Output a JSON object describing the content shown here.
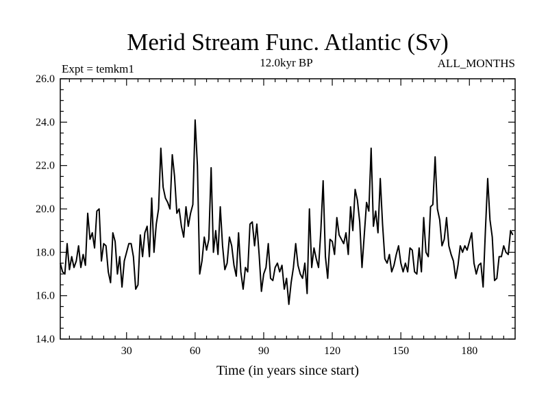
{
  "chart_data": {
    "type": "line",
    "title": "Merid Stream Func. Atlantic (Sv)",
    "subtitle_left": "Expt = temkm1",
    "subtitle_center": "12.0kyr BP",
    "subtitle_right": "ALL_MONTHS",
    "xlabel": "Time (in years since start)",
    "ylabel": "",
    "xlim": [
      1,
      200
    ],
    "ylim": [
      14.0,
      26.0
    ],
    "grid": false,
    "x_ticks": [
      30,
      60,
      90,
      120,
      150,
      180
    ],
    "x_tick_labels": [
      "30",
      "60",
      "90",
      "120",
      "150",
      "180"
    ],
    "y_ticks": [
      14,
      16,
      18,
      20,
      22,
      24,
      26
    ],
    "y_tick_labels": [
      "14.0",
      "16.0",
      "18.0",
      "20.0",
      "22.0",
      "24.0",
      "26.0"
    ],
    "series": [
      {
        "name": "Merid Stream Func. Atlantic",
        "x_start": 1,
        "x_step": 1,
        "values": [
          17.5,
          17.1,
          17.0,
          18.4,
          17.2,
          17.8,
          17.3,
          17.6,
          18.3,
          17.3,
          17.9,
          17.4,
          19.8,
          18.6,
          18.9,
          18.2,
          19.9,
          20.0,
          17.6,
          18.4,
          18.3,
          17.1,
          16.6,
          18.9,
          18.5,
          17.0,
          17.8,
          16.4,
          17.6,
          18.0,
          18.4,
          18.4,
          17.8,
          16.3,
          16.5,
          18.8,
          17.8,
          18.9,
          19.2,
          17.8,
          20.5,
          18.0,
          19.3,
          20.0,
          22.8,
          21.0,
          20.5,
          20.3,
          20.0,
          22.5,
          21.5,
          19.8,
          20.0,
          19.2,
          18.7,
          20.1,
          19.2,
          19.8,
          20.2,
          24.1,
          22.0,
          17.0,
          17.6,
          18.7,
          18.1,
          18.6,
          21.9,
          18.0,
          19.0,
          17.9,
          20.1,
          18.3,
          17.2,
          17.5,
          18.7,
          18.3,
          17.4,
          16.9,
          18.9,
          17.1,
          16.3,
          17.3,
          17.1,
          19.3,
          19.4,
          18.3,
          19.3,
          17.9,
          16.2,
          17.0,
          17.3,
          18.4,
          16.8,
          16.7,
          17.3,
          17.5,
          17.1,
          17.4,
          16.3,
          16.8,
          15.6,
          16.6,
          17.3,
          18.4,
          17.4,
          17.0,
          16.8,
          17.5,
          16.1,
          20.0,
          17.3,
          18.2,
          17.7,
          17.3,
          19.0,
          21.3,
          17.8,
          16.8,
          18.6,
          18.5,
          17.9,
          19.6,
          18.8,
          18.6,
          18.4,
          18.9,
          17.9,
          20.1,
          19.0,
          20.9,
          20.4,
          19.4,
          17.3,
          18.8,
          20.3,
          19.9,
          22.8,
          19.2,
          19.9,
          18.9,
          21.4,
          19.3,
          17.7,
          17.5,
          17.9,
          17.1,
          17.4,
          17.9,
          18.3,
          17.5,
          17.1,
          17.5,
          17.1,
          18.2,
          18.1,
          17.1,
          17.0,
          18.2,
          17.1,
          19.6,
          18.0,
          17.8,
          20.1,
          20.2,
          22.4,
          20.0,
          19.5,
          18.3,
          18.6,
          19.6,
          18.3,
          17.9,
          17.6,
          16.8,
          17.4,
          18.3,
          18.0,
          18.3,
          18.1,
          18.5,
          18.9,
          17.5,
          17.0,
          17.4,
          17.5,
          16.4,
          19.0,
          21.4,
          19.5,
          18.7,
          16.7,
          16.8,
          17.8,
          17.8,
          18.3,
          18.0,
          17.9,
          19.0,
          18.8
        ]
      }
    ]
  }
}
